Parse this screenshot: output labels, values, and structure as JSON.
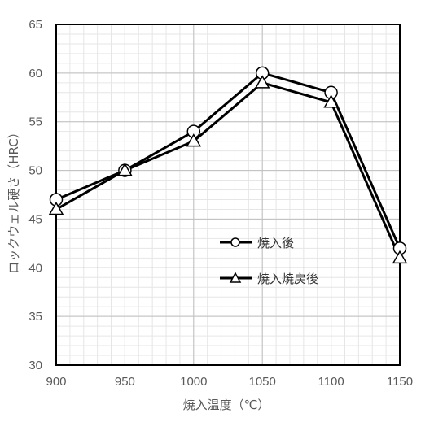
{
  "chart_data": {
    "type": "line",
    "title": "",
    "xlabel": "焼入温度（℃）",
    "ylabel": "ロックウェル硬さ（HRC）",
    "x": [
      900,
      950,
      1000,
      1050,
      1100,
      1150
    ],
    "x_ticks": [
      "900",
      "950",
      "1000",
      "1050",
      "1100",
      "1150"
    ],
    "y_ticks": [
      "30",
      "35",
      "40",
      "45",
      "50",
      "55",
      "60",
      "65"
    ],
    "xlim": [
      900,
      1150
    ],
    "ylim": [
      30,
      65
    ],
    "grid": true,
    "legend_position": "center-right",
    "series": [
      {
        "name": "焼入後",
        "marker": "circle",
        "values": [
          47,
          50,
          54,
          60,
          58,
          42
        ]
      },
      {
        "name": "焼入焼戻後",
        "marker": "triangle",
        "values": [
          46,
          50,
          53,
          59,
          57,
          41
        ]
      }
    ],
    "colors": {
      "line": "#000000",
      "marker_fill": "#ffffff",
      "grid_major": "#bfbfbf",
      "grid_minor": "#e6e6e6"
    }
  }
}
